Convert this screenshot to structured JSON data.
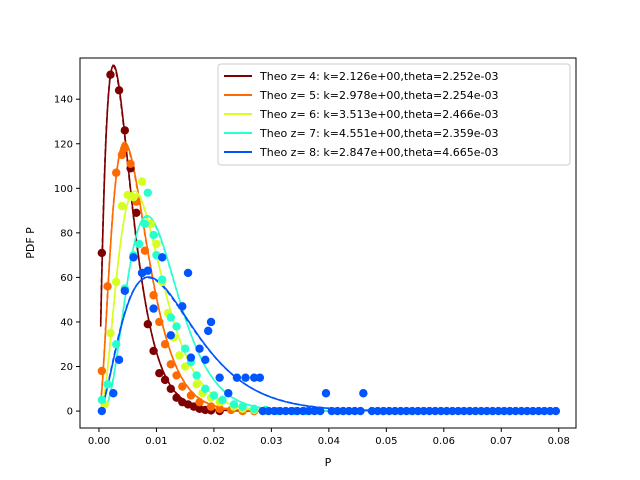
{
  "chart_data": {
    "type": "line",
    "xlabel": "P",
    "ylabel": "PDF P",
    "xlim": [
      -0.0033,
      0.083
    ],
    "ylim": [
      -7.6,
      158.5
    ],
    "xticks": [
      0.0,
      0.01,
      0.02,
      0.03,
      0.04,
      0.05,
      0.06,
      0.07,
      0.08
    ],
    "xtick_labels": [
      "0.00",
      "0.01",
      "0.02",
      "0.03",
      "0.04",
      "0.05",
      "0.06",
      "0.07",
      "0.08"
    ],
    "yticks": [
      0,
      20,
      40,
      60,
      80,
      100,
      120,
      140
    ],
    "ytick_labels": [
      "0",
      "20",
      "40",
      "60",
      "80",
      "100",
      "120",
      "140"
    ],
    "grid": false,
    "legend_placement": "top-right",
    "series": [
      {
        "name": "Theo z= 4: k=2.126e+00,theta=2.252e-03",
        "color": "#7f0000",
        "k": 2.126,
        "theta": 0.002252,
        "points": [
          [
            0.0005,
            71
          ],
          [
            0.002,
            151
          ],
          [
            0.0035,
            144
          ],
          [
            0.0045,
            126
          ],
          [
            0.0055,
            109
          ],
          [
            0.0065,
            89
          ],
          [
            0.0075,
            62
          ],
          [
            0.0085,
            39
          ],
          [
            0.0095,
            27
          ],
          [
            0.0105,
            17
          ],
          [
            0.0115,
            14
          ],
          [
            0.0125,
            10
          ],
          [
            0.0135,
            6
          ],
          [
            0.0145,
            4
          ],
          [
            0.0155,
            3
          ],
          [
            0.0165,
            2
          ],
          [
            0.0175,
            1
          ],
          [
            0.0185,
            0.5
          ],
          [
            0.0195,
            0.3
          ],
          [
            0.021,
            0
          ]
        ]
      },
      {
        "name": "Theo z= 5: k=2.978e+00,theta=2.254e-03",
        "color": "#ff6a00",
        "k": 2.978,
        "theta": 0.002254,
        "points": [
          [
            0.0005,
            18
          ],
          [
            0.0015,
            56
          ],
          [
            0.003,
            107
          ],
          [
            0.004,
            115
          ],
          [
            0.0045,
            118
          ],
          [
            0.0055,
            111
          ],
          [
            0.0065,
            94
          ],
          [
            0.008,
            72
          ],
          [
            0.0095,
            52
          ],
          [
            0.0105,
            40
          ],
          [
            0.0115,
            30
          ],
          [
            0.0125,
            21
          ],
          [
            0.0135,
            16
          ],
          [
            0.0145,
            11
          ],
          [
            0.016,
            7
          ],
          [
            0.0175,
            4
          ],
          [
            0.0195,
            2
          ],
          [
            0.021,
            1
          ],
          [
            0.023,
            0.5
          ],
          [
            0.025,
            0
          ],
          [
            0.027,
            0
          ]
        ]
      },
      {
        "name": "Theo z= 6: k=3.513e+00,theta=2.466e-03",
        "color": "#d4ff21",
        "k": 3.513,
        "theta": 0.002466,
        "points": [
          [
            0.001,
            3
          ],
          [
            0.002,
            35
          ],
          [
            0.003,
            58
          ],
          [
            0.004,
            92
          ],
          [
            0.005,
            97
          ],
          [
            0.006,
            96
          ],
          [
            0.0075,
            103
          ],
          [
            0.009,
            84
          ],
          [
            0.01,
            75
          ],
          [
            0.011,
            58
          ],
          [
            0.012,
            44
          ],
          [
            0.013,
            33
          ],
          [
            0.014,
            25
          ],
          [
            0.015,
            20
          ],
          [
            0.017,
            12
          ],
          [
            0.018,
            8
          ],
          [
            0.0195,
            6
          ],
          [
            0.021,
            4
          ],
          [
            0.0235,
            2
          ],
          [
            0.025,
            1
          ],
          [
            0.027,
            0.5
          ],
          [
            0.029,
            0
          ]
        ]
      },
      {
        "name": "Theo z= 7: k=4.551e+00,theta=2.359e-03",
        "color": "#29ffce",
        "k": 4.551,
        "theta": 0.002359,
        "points": [
          [
            0.0005,
            5
          ],
          [
            0.0015,
            12
          ],
          [
            0.003,
            30
          ],
          [
            0.0045,
            55
          ],
          [
            0.006,
            70
          ],
          [
            0.007,
            75
          ],
          [
            0.008,
            84
          ],
          [
            0.0085,
            98
          ],
          [
            0.0095,
            79
          ],
          [
            0.01,
            70
          ],
          [
            0.011,
            59
          ],
          [
            0.0125,
            42
          ],
          [
            0.0135,
            38
          ],
          [
            0.015,
            28
          ],
          [
            0.016,
            22
          ],
          [
            0.017,
            16
          ],
          [
            0.0185,
            10
          ],
          [
            0.02,
            7
          ],
          [
            0.0215,
            5
          ],
          [
            0.0235,
            3
          ],
          [
            0.025,
            2
          ],
          [
            0.027,
            1
          ],
          [
            0.029,
            0.5
          ],
          [
            0.031,
            0
          ],
          [
            0.034,
            0
          ],
          [
            0.036,
            0
          ]
        ]
      },
      {
        "name": "Theo z= 8: k=2.847e+00,theta=4.665e-03",
        "color": "#0055ff",
        "k": 2.847,
        "theta": 0.004665,
        "points": [
          [
            0.0005,
            0
          ],
          [
            0.0025,
            8
          ],
          [
            0.0035,
            23
          ],
          [
            0.0045,
            54
          ],
          [
            0.006,
            69
          ],
          [
            0.0075,
            62
          ],
          [
            0.0085,
            63
          ],
          [
            0.0095,
            46
          ],
          [
            0.011,
            69
          ],
          [
            0.0125,
            34
          ],
          [
            0.0145,
            47
          ],
          [
            0.0155,
            62
          ],
          [
            0.016,
            24
          ],
          [
            0.0175,
            28
          ],
          [
            0.0185,
            23
          ],
          [
            0.019,
            36
          ],
          [
            0.0195,
            40
          ],
          [
            0.021,
            15
          ],
          [
            0.0225,
            8
          ],
          [
            0.024,
            15
          ],
          [
            0.0255,
            15
          ],
          [
            0.027,
            15
          ],
          [
            0.028,
            15
          ],
          [
            0.0285,
            0
          ],
          [
            0.0295,
            0
          ],
          [
            0.0305,
            0
          ],
          [
            0.0315,
            0
          ],
          [
            0.0325,
            0
          ],
          [
            0.0335,
            0
          ],
          [
            0.0345,
            0
          ],
          [
            0.0355,
            0
          ],
          [
            0.0365,
            0
          ],
          [
            0.0375,
            0
          ],
          [
            0.0385,
            0
          ],
          [
            0.0395,
            8
          ],
          [
            0.0405,
            0
          ],
          [
            0.0415,
            0
          ],
          [
            0.0425,
            0
          ],
          [
            0.0435,
            0
          ],
          [
            0.0445,
            0
          ],
          [
            0.0455,
            0
          ],
          [
            0.046,
            8
          ],
          [
            0.0475,
            0
          ],
          [
            0.0485,
            0
          ],
          [
            0.0495,
            0
          ],
          [
            0.0505,
            0
          ],
          [
            0.0515,
            0
          ],
          [
            0.0525,
            0
          ],
          [
            0.0535,
            0
          ],
          [
            0.0545,
            0
          ],
          [
            0.0555,
            0
          ],
          [
            0.0565,
            0
          ],
          [
            0.0575,
            0
          ],
          [
            0.0585,
            0
          ],
          [
            0.0595,
            0
          ],
          [
            0.0605,
            0
          ],
          [
            0.0615,
            0
          ],
          [
            0.0625,
            0
          ],
          [
            0.0635,
            0
          ],
          [
            0.0645,
            0
          ],
          [
            0.0655,
            0
          ],
          [
            0.0665,
            0
          ],
          [
            0.0675,
            0
          ],
          [
            0.0685,
            0
          ],
          [
            0.0695,
            0
          ],
          [
            0.0705,
            0
          ],
          [
            0.0715,
            0
          ],
          [
            0.0725,
            0
          ],
          [
            0.0735,
            0
          ],
          [
            0.0745,
            0
          ],
          [
            0.0755,
            0
          ],
          [
            0.0765,
            0
          ],
          [
            0.0775,
            0
          ],
          [
            0.0785,
            0
          ],
          [
            0.0795,
            0
          ]
        ]
      }
    ]
  }
}
